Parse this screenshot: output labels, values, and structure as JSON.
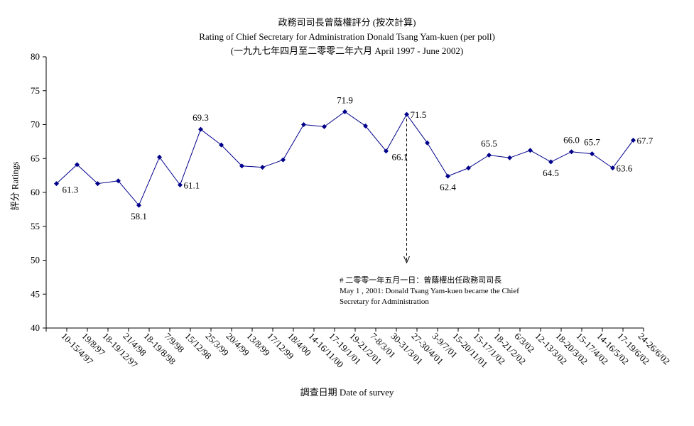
{
  "chart_data": {
    "type": "line",
    "title_zh": "政務司司長曾蔭權評分 (按次計算)",
    "title": "Rating of Chief Secretary for Administration Donald Tsang Yam-kuen  (per poll)",
    "subtitle": "(一九九七年四月至二零零二年六月 April 1997 - June 2002)",
    "xlabel": "調查日期 Date of survey",
    "ylabel": "評分 Ratings",
    "ylim": [
      40,
      80
    ],
    "yticks": [
      40,
      45,
      50,
      55,
      60,
      65,
      70,
      75,
      80
    ],
    "grid": false,
    "line_color": "#00008B",
    "categories": [
      "10-15/4/97",
      "19/8/97",
      "18-19/12/97",
      "21/4/98",
      "18-19/8/98",
      "7/9/98",
      "15/12/98",
      "25/3/99",
      "20/4/99",
      "13/8/99",
      "17/12/99",
      "18/4/00",
      "14-16/11/00",
      "17-19/1/01",
      "19-21/2/01",
      "7-8/3/01",
      "30-31/3/01",
      "27-30/4/01",
      "3-9/7/01",
      "15-20/11/01",
      "15-17/1/02",
      "18-21/2/02",
      "6/3/02",
      "12-13/3/02",
      "18-20/3/02",
      "15-17/4/02",
      "14-16/5/02",
      "17-19/6/02",
      "24-26/6/02"
    ],
    "series": [
      {
        "values": [
          61.3,
          64.1,
          61.3,
          61.7,
          58.1,
          65.2,
          61.1,
          69.3,
          67.0,
          63.9,
          63.7,
          64.8,
          70.0,
          69.7,
          71.9,
          69.8,
          66.1,
          71.5,
          67.3,
          62.4,
          63.6,
          65.5,
          65.1,
          66.2,
          64.5,
          66.0,
          65.7,
          63.6,
          67.7
        ]
      }
    ],
    "labeled_points": [
      {
        "index": 0,
        "label": "61.3",
        "pos": "below-right"
      },
      {
        "index": 4,
        "label": "58.1",
        "pos": "below"
      },
      {
        "index": 6,
        "label": "61.1",
        "pos": "right"
      },
      {
        "index": 7,
        "label": "69.3",
        "pos": "above"
      },
      {
        "index": 14,
        "label": "71.9",
        "pos": "above"
      },
      {
        "index": 16,
        "label": "66.1",
        "pos": "below-right"
      },
      {
        "index": 17,
        "label": "71.5",
        "pos": "right"
      },
      {
        "index": 19,
        "label": "62.4",
        "pos": "below"
      },
      {
        "index": 21,
        "label": "65.5",
        "pos": "above"
      },
      {
        "index": 24,
        "label": "64.5",
        "pos": "below"
      },
      {
        "index": 25,
        "label": "66.0",
        "pos": "above"
      },
      {
        "index": 26,
        "label": "65.7",
        "pos": "above"
      },
      {
        "index": 27,
        "label": "63.6",
        "pos": "right"
      },
      {
        "index": 28,
        "label": "67.7",
        "pos": "right"
      }
    ],
    "annotation": {
      "index": 17,
      "line1": "# 二零零一年五月一日：曾蔭權出任政務司司長",
      "line2": "May 1 , 2001: Donald Tsang Yam-kuen became the Chief",
      "line3": "Secretary for Administration"
    }
  }
}
